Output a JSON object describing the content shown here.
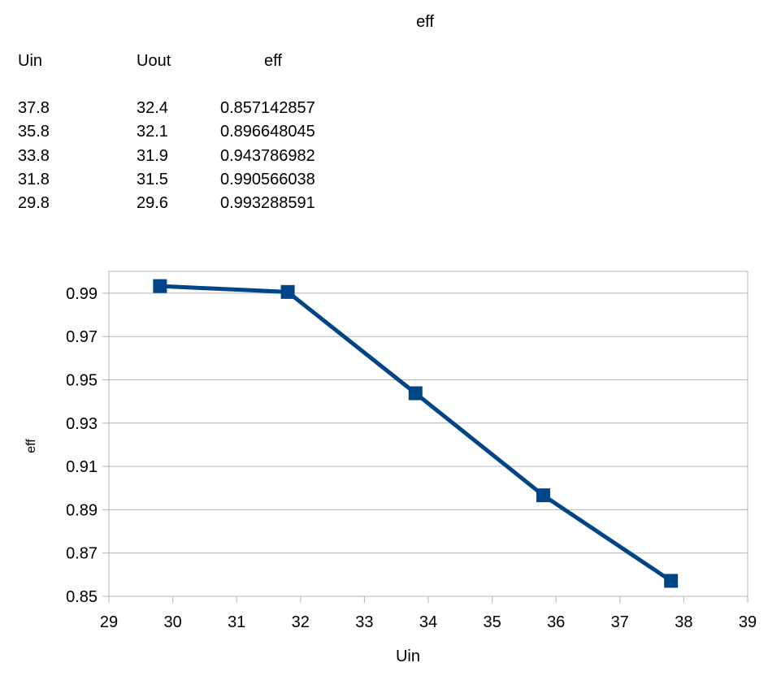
{
  "page": {
    "title": "eff"
  },
  "table": {
    "headers": [
      "Uin",
      "Uout",
      "eff"
    ],
    "rows": [
      [
        "37.8",
        "32.4",
        "0.857142857"
      ],
      [
        "35.8",
        "32.1",
        "0.896648045"
      ],
      [
        "33.8",
        "31.9",
        "0.943786982"
      ],
      [
        "31.8",
        "31.5",
        "0.990566038"
      ],
      [
        "29.8",
        "29.6",
        "0.993288591"
      ]
    ]
  },
  "chart_data": {
    "type": "line",
    "title": "",
    "xlabel": "Uin",
    "ylabel": "eff",
    "xlim": [
      29,
      39
    ],
    "ylim": [
      0.85,
      1.0
    ],
    "x_ticks": [
      "29",
      "30",
      "31",
      "32",
      "33",
      "34",
      "35",
      "36",
      "37",
      "38",
      "39"
    ],
    "y_ticks": [
      "0.85",
      "0.87",
      "0.89",
      "0.91",
      "0.93",
      "0.95",
      "0.97",
      "0.99"
    ],
    "grid": true,
    "legend": "none",
    "series": [
      {
        "x": [
          37.8,
          35.8,
          33.8,
          31.8,
          29.8
        ],
        "y": [
          0.857142857,
          0.896648045,
          0.943786982,
          0.990566038,
          0.993288591
        ],
        "color": "#004586",
        "marker": "square"
      }
    ]
  }
}
